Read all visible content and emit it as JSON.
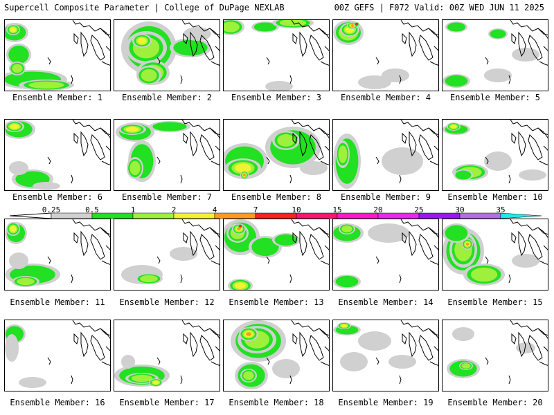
{
  "header": {
    "title": "Supercell Composite Parameter | College of DuPage NEXLAB",
    "run_info": "00Z GEFS | F072 Valid: 00Z WED JUN 11 2025"
  },
  "colorbar": {
    "labels": [
      "0.25",
      "0.5",
      "1",
      "2",
      "4",
      "7",
      "10",
      "15",
      "20",
      "25",
      "30",
      "35"
    ],
    "colors": [
      "#d0d0d0",
      "#22e022",
      "#9ef03c",
      "#f2f230",
      "#ff9a20",
      "#ff2020",
      "#ff1470",
      "#ff18c8",
      "#e828f0",
      "#9a18f0",
      "#b070e0",
      "#20e8e8"
    ]
  },
  "map_colors": {
    "coast": "#000000",
    "sig_low": "#d0d0d0",
    "sig_mod": "#22e022",
    "sig_high": "#9ef03c",
    "sig_yellow": "#f2f230",
    "sig_orange": "#ff9a20",
    "sig_red": "#ff2020"
  },
  "panels": [
    {
      "caption": "Ensemble Member: 1"
    },
    {
      "caption": "Ensemble Member: 2"
    },
    {
      "caption": "Ensemble Member: 3"
    },
    {
      "caption": "Ensemble Member: 4"
    },
    {
      "caption": "Ensemble Member: 5"
    },
    {
      "caption": "Ensemble Member: 6"
    },
    {
      "caption": "Ensemble Member: 7"
    },
    {
      "caption": "Ensemble Member: 8"
    },
    {
      "caption": "Ensemble Member: 9"
    },
    {
      "caption": "Ensemble Member: 10"
    },
    {
      "caption": "Ensemble Member: 11"
    },
    {
      "caption": "Ensemble Member: 12"
    },
    {
      "caption": "Ensemble Member: 13"
    },
    {
      "caption": "Ensemble Member: 14"
    },
    {
      "caption": "Ensemble Member: 15"
    },
    {
      "caption": "Ensemble Member: 16"
    },
    {
      "caption": "Ensemble Member: 17"
    },
    {
      "caption": "Ensemble Member: 18"
    },
    {
      "caption": "Ensemble Member: 19"
    },
    {
      "caption": "Ensemble Member: 20"
    }
  ]
}
